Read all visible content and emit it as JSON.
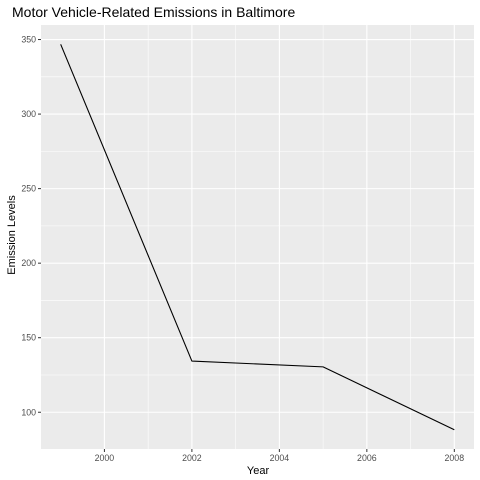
{
  "chart_data": {
    "type": "line",
    "title": "Motor Vehicle-Related Emissions in Baltimore",
    "xlabel": "Year",
    "ylabel": "Emission Levels",
    "x": [
      1999,
      2002,
      2005,
      2008
    ],
    "series": [
      {
        "values": [
          346.82,
          134.31,
          130.43,
          88.28
        ]
      }
    ],
    "xlim": [
      1998.55,
      2008.45
    ],
    "ylim": [
      75.35,
      359.75
    ],
    "x_ticks": [
      2000,
      2002,
      2004,
      2006,
      2008
    ],
    "y_ticks": [
      100,
      150,
      200,
      250,
      300,
      350
    ],
    "grid": true,
    "colors": {
      "panel": "#ebebeb",
      "grid": "#ffffff",
      "line": "#000000",
      "tick": "#4d4d4d"
    }
  }
}
